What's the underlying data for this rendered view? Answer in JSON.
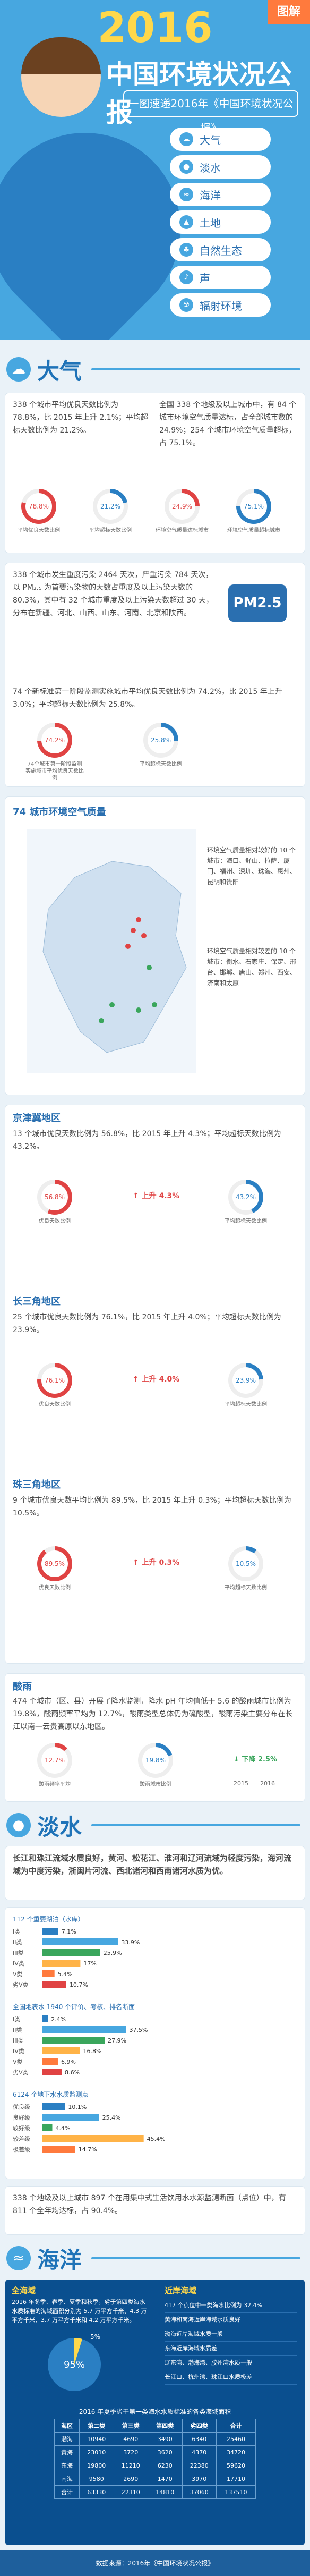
{
  "hero": {
    "year": "2016",
    "title": "中国环境状况公报",
    "subtitle": "一图速递2016年《中国环境状况公报》",
    "tag": "图解",
    "topics": [
      "大气",
      "淡水",
      "海洋",
      "土地",
      "自然生态",
      "声",
      "辐射环境"
    ]
  },
  "air": {
    "heading": "大气",
    "p1": "338 个城市平均优良天数比例为 78.8%，比 2015 年上升 2.1%；平均超标天数比例为 21.2%。",
    "p2": "全国 338 个地级及以上城市中，有 84 个城市环境空气质量达标，占全部城市数的 24.9%；254 个城市环境空气质量超标，占 75.1%。",
    "rings1": [
      {
        "value": "78.8%",
        "label": "平均优良天数比例"
      },
      {
        "value": "21.2%",
        "label": "平均超标天数比例"
      },
      {
        "value": "24.9%",
        "label": "环境空气质量达标城市"
      },
      {
        "value": "75.1%",
        "label": "环境空气质量超标城市"
      }
    ],
    "p3": "338 个城市发生重度污染 2464 天次，严重污染 784 天次，以 PM₂.₅ 为首要污染物的天数占重度及以上污染天数的 80.3%，其中有 32 个城市重度及以上污染天数超过 30 天，分布在新疆、河北、山西、山东、河南、北京和陕西。",
    "pm_badge": "PM2.5",
    "p4": "74 个新标准第一阶段监测实施城市平均优良天数比例为 74.2%，比 2015 年上升 3.0%；平均超标天数比例为 25.8%。",
    "rings2": [
      {
        "value": "74.2%",
        "label": "74个城市第一阶段监测实施城市平均优良天数比例"
      },
      {
        "value": "25.8%",
        "label": "平均超标天数比例"
      }
    ],
    "map_title": "74 城市环境空气质量",
    "map_legend": "环境空气质量相对较好的 10 个城市：海口、舒山、拉萨、厦门、福州、深圳、珠海、惠州、昆明和贵阳",
    "map_legend2": "环境空气质量相对较差的 10 个城市：衡水、石家庄、保定、邢台、邯郸、唐山、郑州、西安、济南和太原",
    "regions": [
      {
        "name": "京津冀地区",
        "text": "13 个城市优良天数比例为 56.8%，比 2015 年上升 4.3%；平均超标天数比例为 43.2%。",
        "good": "56.8%",
        "bad": "43.2%",
        "change": "上升 4.3%",
        "good_label": "优良天数比例",
        "bad_label": "平均超标天数比例"
      },
      {
        "name": "长三角地区",
        "text": "25 个城市优良天数比例为 76.1%，比 2015 年上升 4.0%；平均超标天数比例为 23.9%。",
        "good": "76.1%",
        "bad": "23.9%",
        "change": "上升 4.0%",
        "good_label": "优良天数比例",
        "bad_label": "平均超标天数比例"
      },
      {
        "name": "珠三角地区",
        "text": "9 个城市优良天数平均比例为 89.5%，比 2015 年上升 0.3%；平均超标天数比例为 10.5%。",
        "good": "89.5%",
        "bad": "10.5%",
        "change": "上升 0.3%",
        "good_label": "优良天数比例",
        "bad_label": "平均超标天数比例"
      }
    ],
    "acid_heading": "酸雨",
    "acid_text": "474 个城市（区、县）开展了降水监测，降水 pH 年均值低于 5.6 的酸雨城市比例为 19.8%，酸雨频率平均为 12.7%，酸雨类型总体仍为硫酸型，酸雨污染主要分布在长江以南—云贵高原以东地区。",
    "acid_rings": [
      {
        "value": "12.7%",
        "label": "酸雨频率平均"
      },
      {
        "value": "19.8%",
        "label": "酸雨城市比例"
      }
    ],
    "acid_years": [
      "2015",
      "2016"
    ],
    "acid_change": "下降 2.5%"
  },
  "water": {
    "heading": "淡水",
    "intro": "长江和珠江流域水质良好，黄河、松花江、淮河和辽河流域为轻度污染，海河流域为中度污染，浙闽片河流、西北诸河和西南诸河水质为优。",
    "chart_data": [
      {
        "type": "bar",
        "title": "112 个重要湖泊（水库）",
        "categories": [
          "I类",
          "II类",
          "III类",
          "IV类",
          "V类",
          "劣V类"
        ],
        "values": [
          7.1,
          33.9,
          25.9,
          17.0,
          5.4,
          10.7
        ],
        "unit": "%"
      },
      {
        "type": "bar",
        "title": "全国地表水 1940 个评价、考核、排名断面",
        "categories": [
          "I类",
          "II类",
          "III类",
          "IV类",
          "V类",
          "劣V类"
        ],
        "values": [
          2.4,
          37.5,
          27.9,
          16.8,
          6.9,
          8.6
        ],
        "unit": "%"
      },
      {
        "type": "bar",
        "title": "6124 个地下水水质监测点",
        "categories": [
          "优良级",
          "良好级",
          "较好级",
          "较差级",
          "极差级"
        ],
        "values": [
          10.1,
          25.4,
          4.4,
          45.4,
          14.7
        ],
        "unit": "%"
      }
    ],
    "drinking": "338 个地级及以上城市 897 个在用集中式生活饮用水水源监测断面（点位）中，有 811 个全年均达标，占 90.4%。",
    "drinking_value": "90.4%"
  },
  "sea": {
    "heading": "海洋",
    "left_title": "全海域",
    "left_text": "2016 年冬季、春季、夏季和秋季，劣于第四类海水水质标准的海域面积分别为 5.7 万平方千米、4.3 万平方千米、3.7 万平方千米和 4.2 万平方千米。",
    "pie": {
      "value": "95%",
      "small": "5%"
    },
    "right_title": "近岸海域",
    "right_lines": [
      "417 个点位中一类海水比例为 32.4%",
      "黄海和南海近岸海域水质良好",
      "渤海近岸海域水质一般",
      "东海近岸海域水质差",
      "辽东湾、渤海湾、胶州湾水质一般",
      "长江口、杭州湾、珠江口水质极差"
    ],
    "table_title": "2016 年夏季劣于第一类海水水质标准的各类海域面积",
    "table_head": [
      "海区",
      "第二类",
      "第三类",
      "第四类",
      "劣四类",
      "合计"
    ],
    "table_rows": [
      [
        "渤海",
        "10940",
        "4690",
        "3490",
        "6340",
        "25460"
      ],
      [
        "黄海",
        "23010",
        "3720",
        "3620",
        "4370",
        "34720"
      ],
      [
        "东海",
        "19800",
        "11210",
        "6230",
        "22380",
        "59620"
      ],
      [
        "南海",
        "9580",
        "2690",
        "1470",
        "3970",
        "17710"
      ],
      [
        "合计",
        "63330",
        "22310",
        "14810",
        "37060",
        "137510"
      ]
    ]
  },
  "footer": "数据来源：2016年《中国环境状况公报》"
}
